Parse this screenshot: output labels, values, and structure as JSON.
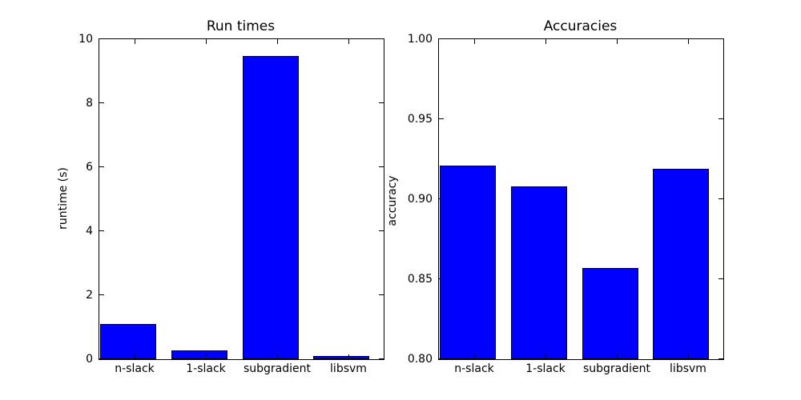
{
  "figure": {
    "background_color": "#ffffff",
    "axis_color": "#000000",
    "text_color": "#000000"
  },
  "chart_data": [
    {
      "type": "bar",
      "title": "Run times",
      "xlabel": "",
      "ylabel": "runtime (s)",
      "categories": [
        "n-slack",
        "1-slack",
        "subgradient",
        "libsvm"
      ],
      "values": [
        1.1,
        0.28,
        9.48,
        0.1
      ],
      "ylim": [
        0,
        10
      ],
      "yticks": [
        0,
        2,
        4,
        6,
        8,
        10
      ],
      "ytick_labels": [
        "0",
        "2",
        "4",
        "6",
        "8",
        "10"
      ],
      "bar_color": "#0000ff",
      "bar_edge_color": "#000000",
      "bar_width_fraction": 0.8,
      "grid": false,
      "legend": null
    },
    {
      "type": "bar",
      "title": "Accuracies",
      "xlabel": "",
      "ylabel": "accuracy",
      "categories": [
        "n-slack",
        "1-slack",
        "subgradient",
        "libsvm"
      ],
      "values": [
        0.921,
        0.908,
        0.857,
        0.919
      ],
      "ylim": [
        0.8,
        1.0
      ],
      "yticks": [
        0.8,
        0.85,
        0.9,
        0.95,
        1.0
      ],
      "ytick_labels": [
        "0.80",
        "0.85",
        "0.90",
        "0.95",
        "1.00"
      ],
      "bar_color": "#0000ff",
      "bar_edge_color": "#000000",
      "bar_width_fraction": 0.8,
      "grid": false,
      "legend": null
    }
  ]
}
